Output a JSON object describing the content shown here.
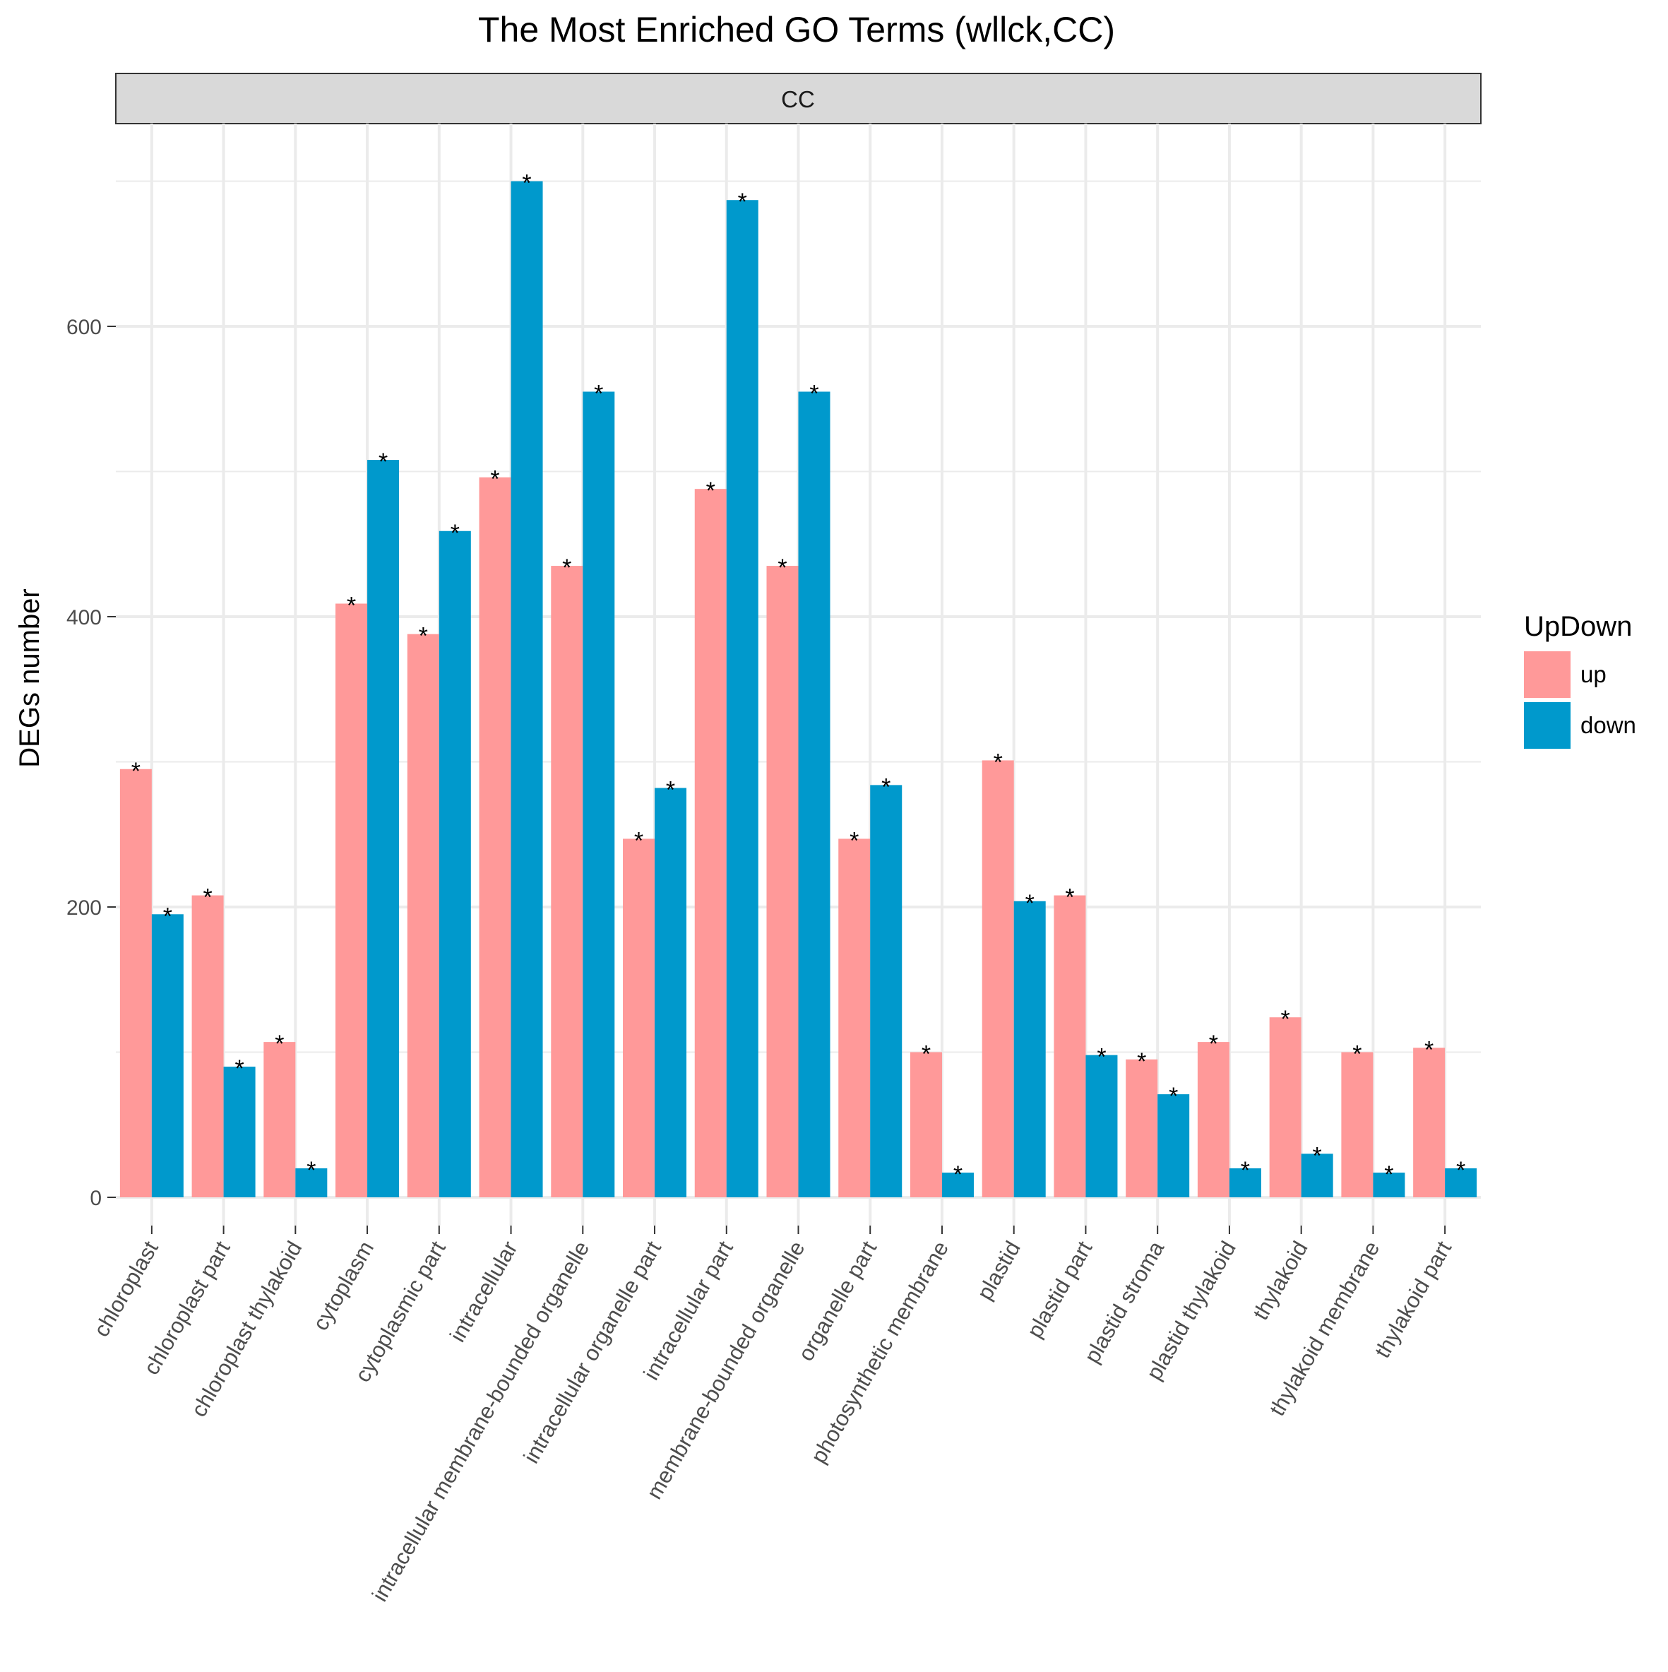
{
  "chart_data": {
    "type": "bar",
    "title": "The Most Enriched GO Terms (wllck,CC)",
    "facet_label": "CC",
    "xlabel": "",
    "ylabel": "DEGs number",
    "ylim": [
      0,
      720
    ],
    "yticks": [
      0,
      200,
      400,
      600
    ],
    "grid": true,
    "legend": {
      "title": "UpDown",
      "placement": "right"
    },
    "marker_symbol": "*",
    "categories": [
      "chloroplast",
      "chloroplast part",
      "chloroplast thylakoid",
      "cytoplasm",
      "cytoplasmic part",
      "intracellular",
      "intracellular membrane-bounded organelle",
      "intracellular organelle part",
      "intracellular part",
      "membrane-bounded organelle",
      "organelle part",
      "photosynthetic membrane",
      "plastid",
      "plastid part",
      "plastid stroma",
      "plastid thylakoid",
      "thylakoid",
      "thylakoid membrane",
      "thylakoid part"
    ],
    "series": [
      {
        "name": "up",
        "color": "#ff9999",
        "values": [
          295,
          208,
          107,
          409,
          388,
          496,
          435,
          247,
          488,
          435,
          247,
          100,
          301,
          208,
          95,
          107,
          124,
          100,
          103
        ]
      },
      {
        "name": "down",
        "color": "#0099cc",
        "values": [
          195,
          90,
          20,
          508,
          459,
          700,
          555,
          282,
          687,
          555,
          284,
          17,
          204,
          98,
          71,
          20,
          30,
          17,
          20
        ]
      }
    ]
  }
}
